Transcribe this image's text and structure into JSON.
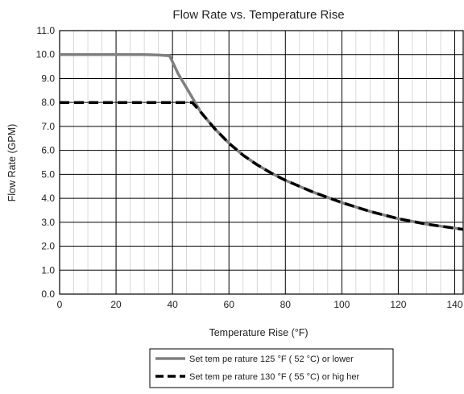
{
  "chart_data": {
    "type": "line",
    "title": "Flow Rate vs. Temperature Rise",
    "xlabel": "Temperature Rise (°F)",
    "ylabel": "Flow  Rate  (GPM)",
    "xlim": [
      0,
      143
    ],
    "ylim": [
      0,
      11
    ],
    "x_ticks": [
      "0",
      "20",
      "40",
      "60",
      "80",
      "100",
      "120",
      "140"
    ],
    "y_ticks": [
      "0.0",
      "1.0",
      "2.0",
      "3.0",
      "4.0",
      "5.0",
      "6.0",
      "7.0",
      "8.0",
      "9.0",
      "10.0",
      "11.0"
    ],
    "grid": true,
    "legend_position": "bottom-center",
    "series": [
      {
        "name": "Set tem  pe rature  125 °F ( 52 °C) or   lower",
        "color": "#808080",
        "style": "solid",
        "x": [
          0,
          10,
          20,
          30,
          35,
          39,
          40,
          42,
          45,
          50,
          55,
          60,
          65,
          70,
          75,
          80,
          90,
          100,
          110,
          120,
          130,
          143
        ],
        "y": [
          10.0,
          10.0,
          10.0,
          10.0,
          9.98,
          9.95,
          9.7,
          9.2,
          8.6,
          7.6,
          6.9,
          6.3,
          5.8,
          5.4,
          5.05,
          4.75,
          4.25,
          3.82,
          3.45,
          3.15,
          2.92,
          2.7
        ]
      },
      {
        "name": "Set tem  pe rature  130 °F ( 55 °C) or   hig her",
        "color": "#000000",
        "style": "dashed",
        "x": [
          0,
          10,
          20,
          30,
          40,
          47,
          50,
          55,
          60,
          65,
          70,
          75,
          80,
          90,
          100,
          110,
          120,
          130,
          143
        ],
        "y": [
          8.0,
          8.0,
          8.0,
          8.0,
          8.0,
          8.0,
          7.6,
          6.9,
          6.3,
          5.8,
          5.4,
          5.05,
          4.75,
          4.25,
          3.82,
          3.45,
          3.15,
          2.92,
          2.7
        ]
      }
    ]
  }
}
